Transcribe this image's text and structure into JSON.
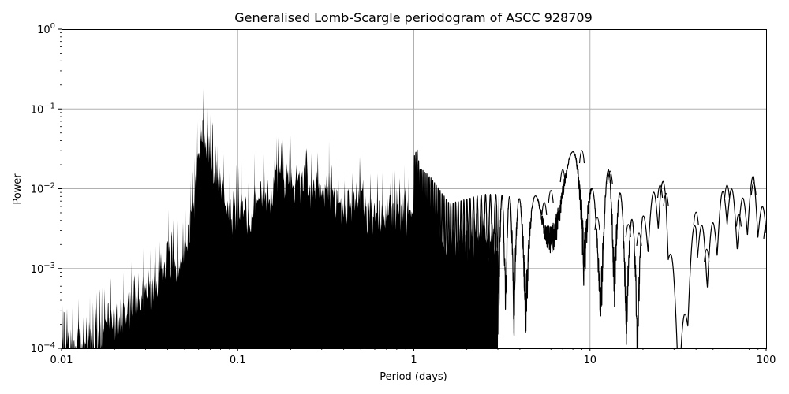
{
  "chart_data": {
    "type": "line",
    "title": "Generalised Lomb-Scargle periodogram of ASCC 928709",
    "xlabel": "Period (days)",
    "ylabel": "Power",
    "xscale": "log",
    "yscale": "log",
    "xlim": [
      0.01,
      100
    ],
    "ylim": [
      0.0001,
      1
    ],
    "grid": true,
    "legend": null,
    "x_ticks": [
      {
        "value": 0.01,
        "label": "0.01"
      },
      {
        "value": 0.1,
        "label": "0.1"
      },
      {
        "value": 1,
        "label": "1"
      },
      {
        "value": 10,
        "label": "10"
      },
      {
        "value": 100,
        "label": "100"
      }
    ],
    "y_ticks": [
      {
        "value": 0.0001,
        "base": "10",
        "exp": "−4"
      },
      {
        "value": 0.001,
        "base": "10",
        "exp": "−3"
      },
      {
        "value": 0.01,
        "base": "10",
        "exp": "−2"
      },
      {
        "value": 0.1,
        "base": "10",
        "exp": "−1"
      },
      {
        "value": 1,
        "base": "10",
        "exp": "0"
      }
    ],
    "series": [
      {
        "name": "GLS power",
        "color": "#000000",
        "peaks": [
          {
            "period": 0.0102,
            "power": 0.00035
          },
          {
            "period": 0.0115,
            "power": 0.00033
          },
          {
            "period": 0.0125,
            "power": 0.00042
          },
          {
            "period": 0.0145,
            "power": 0.00045
          },
          {
            "period": 0.0165,
            "power": 0.00055
          },
          {
            "period": 0.019,
            "power": 0.00075
          },
          {
            "period": 0.0225,
            "power": 0.0009
          },
          {
            "period": 0.025,
            "power": 0.0012
          },
          {
            "period": 0.029,
            "power": 0.0018
          },
          {
            "period": 0.032,
            "power": 0.0017
          },
          {
            "period": 0.036,
            "power": 0.0022
          },
          {
            "period": 0.0405,
            "power": 0.0055
          },
          {
            "period": 0.0455,
            "power": 0.004
          },
          {
            "period": 0.0505,
            "power": 0.0055
          },
          {
            "period": 0.054,
            "power": 0.013
          },
          {
            "period": 0.057,
            "power": 0.025
          },
          {
            "period": 0.059,
            "power": 0.07
          },
          {
            "period": 0.0635,
            "power": 0.18
          },
          {
            "period": 0.0675,
            "power": 0.13
          },
          {
            "period": 0.072,
            "power": 0.068
          },
          {
            "period": 0.077,
            "power": 0.035
          },
          {
            "period": 0.083,
            "power": 0.027
          },
          {
            "period": 0.09,
            "power": 0.017
          },
          {
            "period": 0.105,
            "power": 0.022
          },
          {
            "period": 0.115,
            "power": 0.012
          },
          {
            "period": 0.125,
            "power": 0.028
          },
          {
            "period": 0.14,
            "power": 0.027
          },
          {
            "period": 0.155,
            "power": 0.024
          },
          {
            "period": 0.167,
            "power": 0.045
          },
          {
            "period": 0.2,
            "power": 0.047
          },
          {
            "period": 0.25,
            "power": 0.036
          },
          {
            "period": 0.33,
            "power": 0.04
          },
          {
            "period": 0.41,
            "power": 0.016
          },
          {
            "period": 0.5,
            "power": 0.03
          },
          {
            "period": 0.55,
            "power": 0.016
          },
          {
            "period": 0.66,
            "power": 0.016
          },
          {
            "period": 0.76,
            "power": 0.017
          },
          {
            "period": 0.88,
            "power": 0.02
          },
          {
            "period": 0.93,
            "power": 0.014
          },
          {
            "period": 1.04,
            "power": 0.033
          },
          {
            "period": 1.08,
            "power": 0.018
          },
          {
            "period": 1.2,
            "power": 0.0155
          },
          {
            "period": 1.6,
            "power": 0.0065
          },
          {
            "period": 2.0,
            "power": 0.0075
          },
          {
            "period": 2.5,
            "power": 0.0085
          },
          {
            "period": 3.0,
            "power": 0.0085
          },
          {
            "period": 4.0,
            "power": 0.0075
          },
          {
            "period": 5.5,
            "power": 0.0085
          },
          {
            "period": 6.0,
            "power": 0.012
          },
          {
            "period": 7.0,
            "power": 0.022
          },
          {
            "period": 9.0,
            "power": 0.038
          },
          {
            "period": 11.0,
            "power": 0.0055
          },
          {
            "period": 13.0,
            "power": 0.021
          },
          {
            "period": 16.5,
            "power": 0.0045
          },
          {
            "period": 19.0,
            "power": 0.0035
          },
          {
            "period": 25.0,
            "power": 0.014
          },
          {
            "period": 27.0,
            "power": 0.011
          },
          {
            "period": 32.5,
            "power": 0.0001
          },
          {
            "period": 40.0,
            "power": 0.0064
          },
          {
            "period": 46.0,
            "power": 0.0022
          },
          {
            "period": 60.0,
            "power": 0.014
          },
          {
            "period": 70.0,
            "power": 0.0061
          },
          {
            "period": 85.0,
            "power": 0.015
          },
          {
            "period": 100.0,
            "power": 0.0043
          }
        ]
      }
    ]
  },
  "plot": {
    "title": "Generalised Lomb-Scargle periodogram of ASCC 928709",
    "xlabel": "Period (days)",
    "ylabel": "Power"
  }
}
